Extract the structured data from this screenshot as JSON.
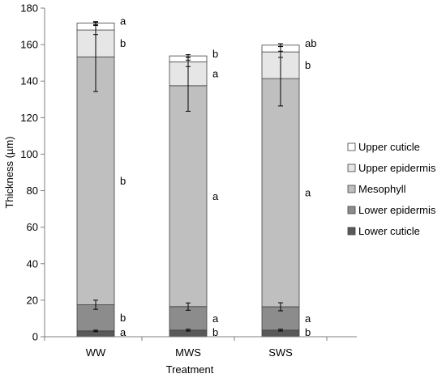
{
  "chart_data": {
    "type": "bar",
    "stacked": true,
    "categories": [
      "WW",
      "MWS",
      "SWS"
    ],
    "xlabel": "Treatment",
    "ylabel": "Thickness (µm)",
    "ylim": [
      0,
      180
    ],
    "yticks": [
      0,
      20,
      40,
      60,
      80,
      100,
      120,
      140,
      160,
      180
    ],
    "grid": false,
    "legend_position": "right",
    "series": [
      {
        "name": "Lower cuticle",
        "color": "#595959",
        "values": [
          3.2,
          3.6,
          3.6
        ],
        "errors": [
          0.4,
          0.5,
          0.5
        ],
        "letters": [
          "a",
          "b",
          "b"
        ]
      },
      {
        "name": "Lower epidermis",
        "color": "#8c8c8c",
        "values": [
          14.3,
          12.9,
          12.8
        ],
        "errors": [
          2.5,
          2.0,
          2.2
        ],
        "letters": [
          "b",
          "a",
          "a"
        ]
      },
      {
        "name": "Mesophyll",
        "color": "#bfbfbf",
        "values": [
          135.8,
          121.0,
          125.0
        ],
        "errors": [
          19.0,
          14.0,
          15.0
        ],
        "letters": [
          "b",
          "a",
          "a"
        ]
      },
      {
        "name": "Upper epidermis",
        "color": "#e6e6e6",
        "values": [
          14.7,
          13.0,
          14.6
        ],
        "errors": [
          2.5,
          2.5,
          3.0
        ],
        "letters": [
          "b",
          "a",
          "b"
        ]
      },
      {
        "name": "Upper cuticle",
        "color": "#ffffff",
        "values": [
          3.8,
          3.3,
          3.7
        ],
        "errors": [
          0.8,
          0.7,
          0.8
        ],
        "letters": [
          "a",
          "b",
          "ab"
        ]
      }
    ]
  }
}
